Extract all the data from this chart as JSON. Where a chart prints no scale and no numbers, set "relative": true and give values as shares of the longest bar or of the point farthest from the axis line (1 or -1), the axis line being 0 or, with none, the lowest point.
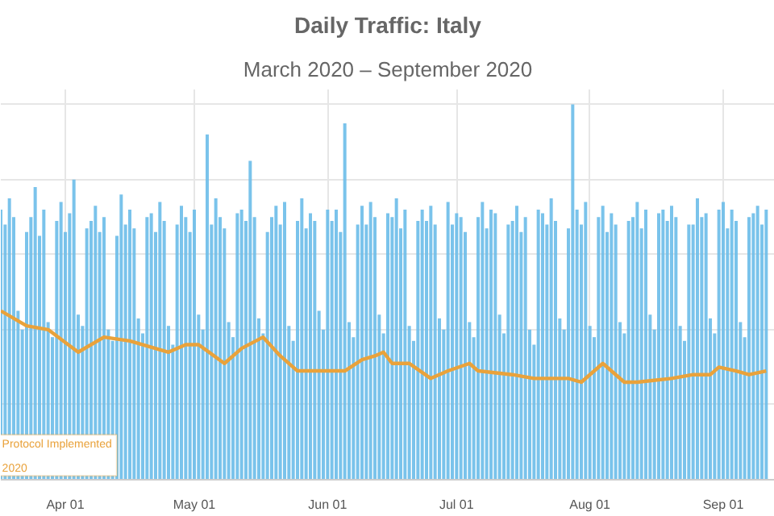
{
  "chart_data": {
    "type": "bar",
    "title": "Daily Traffic: Italy",
    "subtitle": "March 2020 – September 2020",
    "relative": true,
    "grid": true,
    "annotations": [
      "Protocol Implemented",
      "2020"
    ],
    "xlim": [
      "2020-03-17",
      "2020-09-13"
    ],
    "xticks": [
      {
        "value": "2020-04-01",
        "label": "Apr 01"
      },
      {
        "value": "2020-05-01",
        "label": "May 01"
      },
      {
        "value": "2020-06-01",
        "label": "Jun 01"
      },
      {
        "value": "2020-07-01",
        "label": "Jul 01"
      },
      {
        "value": "2020-08-01",
        "label": "Aug 01"
      },
      {
        "value": "2020-09-01",
        "label": "Sep 01"
      }
    ],
    "series": [
      {
        "color": "#6cbde9",
        "x": [
          "2020-03-17",
          "2020-03-18",
          "2020-03-19",
          "2020-03-20",
          "2020-03-21",
          "2020-03-22",
          "2020-03-23",
          "2020-03-24",
          "2020-03-25",
          "2020-03-26",
          "2020-03-27",
          "2020-03-28",
          "2020-03-29",
          "2020-03-30",
          "2020-03-31",
          "2020-04-01",
          "2020-04-02",
          "2020-04-03",
          "2020-04-04",
          "2020-04-05",
          "2020-04-06",
          "2020-04-07",
          "2020-04-08",
          "2020-04-09",
          "2020-04-10",
          "2020-04-11",
          "2020-04-12",
          "2020-04-13",
          "2020-04-14",
          "2020-04-15",
          "2020-04-16",
          "2020-04-17",
          "2020-04-18",
          "2020-04-19",
          "2020-04-20",
          "2020-04-21",
          "2020-04-22",
          "2020-04-23",
          "2020-04-24",
          "2020-04-25",
          "2020-04-26",
          "2020-04-27",
          "2020-04-28",
          "2020-04-29",
          "2020-04-30",
          "2020-05-01",
          "2020-05-02",
          "2020-05-03",
          "2020-05-04",
          "2020-05-05",
          "2020-05-06",
          "2020-05-07",
          "2020-05-08",
          "2020-05-09",
          "2020-05-10",
          "2020-05-11",
          "2020-05-12",
          "2020-05-13",
          "2020-05-14",
          "2020-05-15",
          "2020-05-16",
          "2020-05-17",
          "2020-05-18",
          "2020-05-19",
          "2020-05-20",
          "2020-05-21",
          "2020-05-22",
          "2020-05-23",
          "2020-05-24",
          "2020-05-25",
          "2020-05-26",
          "2020-05-27",
          "2020-05-28",
          "2020-05-29",
          "2020-05-30",
          "2020-05-31",
          "2020-06-01",
          "2020-06-02",
          "2020-06-03",
          "2020-06-04",
          "2020-06-05",
          "2020-06-06",
          "2020-06-07",
          "2020-06-08",
          "2020-06-09",
          "2020-06-10",
          "2020-06-11",
          "2020-06-12",
          "2020-06-13",
          "2020-06-14",
          "2020-06-15",
          "2020-06-16",
          "2020-06-17",
          "2020-06-18",
          "2020-06-19",
          "2020-06-20",
          "2020-06-21",
          "2020-06-22",
          "2020-06-23",
          "2020-06-24",
          "2020-06-25",
          "2020-06-26",
          "2020-06-27",
          "2020-06-28",
          "2020-06-29",
          "2020-06-30",
          "2020-07-01",
          "2020-07-02",
          "2020-07-03",
          "2020-07-04",
          "2020-07-05",
          "2020-07-06",
          "2020-07-07",
          "2020-07-08",
          "2020-07-09",
          "2020-07-10",
          "2020-07-11",
          "2020-07-12",
          "2020-07-13",
          "2020-07-14",
          "2020-07-15",
          "2020-07-16",
          "2020-07-17",
          "2020-07-18",
          "2020-07-19",
          "2020-07-20",
          "2020-07-21",
          "2020-07-22",
          "2020-07-23",
          "2020-07-24",
          "2020-07-25",
          "2020-07-26",
          "2020-07-27",
          "2020-07-28",
          "2020-07-29",
          "2020-07-30",
          "2020-07-31",
          "2020-08-01",
          "2020-08-02",
          "2020-08-03",
          "2020-08-04",
          "2020-08-05",
          "2020-08-06",
          "2020-08-07",
          "2020-08-08",
          "2020-08-09",
          "2020-08-10",
          "2020-08-11",
          "2020-08-12",
          "2020-08-13",
          "2020-08-14",
          "2020-08-15",
          "2020-08-16",
          "2020-08-17",
          "2020-08-18",
          "2020-08-19",
          "2020-08-20",
          "2020-08-21",
          "2020-08-22",
          "2020-08-23",
          "2020-08-24",
          "2020-08-25",
          "2020-08-26",
          "2020-08-27",
          "2020-08-28",
          "2020-08-29",
          "2020-08-30",
          "2020-08-31",
          "2020-09-01",
          "2020-09-02",
          "2020-09-03",
          "2020-09-04",
          "2020-09-05",
          "2020-09-06",
          "2020-09-07",
          "2020-09-08",
          "2020-09-09",
          "2020-09-10",
          "2020-09-11"
        ],
        "values": [
          0.72,
          0.68,
          0.75,
          0.7,
          0.45,
          0.4,
          0.66,
          0.7,
          0.78,
          0.65,
          0.72,
          0.42,
          0.38,
          0.69,
          0.74,
          0.66,
          0.71,
          0.8,
          0.44,
          0.41,
          0.67,
          0.69,
          0.73,
          0.66,
          0.7,
          0.4,
          0.37,
          0.65,
          0.76,
          0.68,
          0.72,
          0.67,
          0.43,
          0.39,
          0.7,
          0.71,
          0.66,
          0.74,
          0.69,
          0.41,
          0.36,
          0.68,
          0.73,
          0.7,
          0.66,
          0.72,
          0.44,
          0.4,
          0.92,
          0.68,
          0.75,
          0.7,
          0.67,
          0.42,
          0.38,
          0.71,
          0.72,
          0.69,
          0.85,
          0.7,
          0.43,
          0.39,
          0.66,
          0.7,
          0.73,
          0.68,
          0.74,
          0.41,
          0.37,
          0.69,
          0.75,
          0.67,
          0.71,
          0.69,
          0.45,
          0.4,
          0.72,
          0.69,
          0.72,
          0.66,
          0.95,
          0.42,
          0.38,
          0.68,
          0.73,
          0.68,
          0.74,
          0.7,
          0.44,
          0.39,
          0.71,
          0.7,
          0.75,
          0.67,
          0.72,
          0.41,
          0.37,
          0.69,
          0.72,
          0.69,
          0.73,
          0.68,
          0.43,
          0.4,
          0.74,
          0.68,
          0.71,
          0.7,
          0.66,
          0.42,
          0.38,
          0.7,
          0.74,
          0.67,
          0.72,
          0.71,
          0.44,
          0.39,
          0.68,
          0.69,
          0.73,
          0.66,
          0.7,
          0.4,
          0.36,
          0.72,
          0.71,
          0.68,
          0.75,
          0.69,
          0.43,
          0.4,
          0.67,
          1.0,
          0.72,
          0.68,
          0.74,
          0.41,
          0.38,
          0.7,
          0.73,
          0.66,
          0.71,
          0.68,
          0.42,
          0.39,
          0.69,
          0.7,
          0.74,
          0.67,
          0.72,
          0.44,
          0.4,
          0.71,
          0.72,
          0.69,
          0.73,
          0.7,
          0.41,
          0.37,
          0.68,
          0.68,
          0.75,
          0.7,
          0.71,
          0.43,
          0.39,
          0.72,
          0.74,
          0.67,
          0.72,
          0.69,
          0.42,
          0.38,
          0.7,
          0.71,
          0.73,
          0.68,
          0.72
        ]
      },
      {
        "type": "line",
        "color": "#e9a23b",
        "x": [
          "2020-03-17",
          "2020-03-23",
          "2020-03-28",
          "2020-04-04",
          "2020-04-10",
          "2020-04-16",
          "2020-04-25",
          "2020-04-29",
          "2020-05-02",
          "2020-05-08",
          "2020-05-12",
          "2020-05-17",
          "2020-05-21",
          "2020-05-25",
          "2020-05-30",
          "2020-06-05",
          "2020-06-09",
          "2020-06-12",
          "2020-06-14",
          "2020-06-16",
          "2020-06-20",
          "2020-06-25",
          "2020-06-29",
          "2020-07-04",
          "2020-07-06",
          "2020-07-14",
          "2020-07-19",
          "2020-07-27",
          "2020-07-30",
          "2020-08-04",
          "2020-08-09",
          "2020-08-12",
          "2020-08-20",
          "2020-08-25",
          "2020-08-29",
          "2020-08-31",
          "2020-09-04",
          "2020-09-07",
          "2020-09-11"
        ],
        "values": [
          0.45,
          0.41,
          0.4,
          0.34,
          0.38,
          0.37,
          0.34,
          0.36,
          0.36,
          0.31,
          0.35,
          0.38,
          0.33,
          0.29,
          0.29,
          0.29,
          0.32,
          0.33,
          0.34,
          0.31,
          0.31,
          0.27,
          0.29,
          0.31,
          0.29,
          0.28,
          0.27,
          0.27,
          0.26,
          0.31,
          0.26,
          0.26,
          0.27,
          0.28,
          0.28,
          0.3,
          0.29,
          0.28,
          0.29
        ]
      }
    ]
  }
}
